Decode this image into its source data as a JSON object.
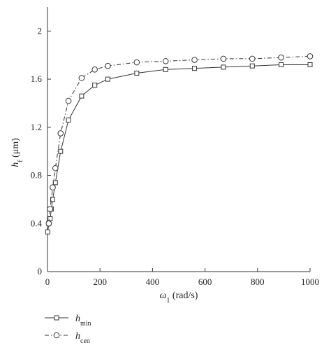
{
  "chart_data": {
    "type": "line",
    "title": "",
    "xlabel": {
      "symbol": "ω",
      "subscript": "1",
      "unit": " (rad/s)"
    },
    "ylabel": {
      "symbol": "h",
      "subscript": "f",
      "unit": " (μm)"
    },
    "xlim": [
      0,
      1000
    ],
    "ylim": [
      0,
      2.2
    ],
    "xticks": [
      0,
      200,
      400,
      600,
      800,
      1000
    ],
    "yticks": [
      0,
      0.4,
      0.8,
      1.2,
      1.6,
      2
    ],
    "ytick_labels": [
      "0",
      "0.4",
      "0.8",
      "1.2",
      "1.6",
      "2"
    ],
    "grid": false,
    "legend_position": "bottom-left",
    "series": [
      {
        "name": "h",
        "name_sub": "min",
        "marker": "square",
        "line_style": "solid",
        "color": "#333333",
        "x": [
          1,
          5,
          10,
          15,
          20,
          30,
          50,
          80,
          130,
          180,
          230,
          340,
          450,
          560,
          670,
          780,
          890,
          1000
        ],
        "y": [
          0.33,
          0.4,
          0.44,
          0.52,
          0.6,
          0.74,
          1.0,
          1.26,
          1.46,
          1.55,
          1.6,
          1.65,
          1.68,
          1.69,
          1.7,
          1.71,
          1.72,
          1.72
        ]
      },
      {
        "name": "h",
        "name_sub": "cen",
        "marker": "circle",
        "line_style": "dashdot",
        "color": "#333333",
        "x": [
          5,
          10,
          20,
          30,
          50,
          80,
          130,
          180,
          230,
          340,
          450,
          560,
          670,
          780,
          890,
          1000
        ],
        "y": [
          0.4,
          0.52,
          0.7,
          0.86,
          1.15,
          1.42,
          1.61,
          1.68,
          1.71,
          1.74,
          1.75,
          1.76,
          1.77,
          1.77,
          1.78,
          1.79
        ]
      }
    ]
  }
}
